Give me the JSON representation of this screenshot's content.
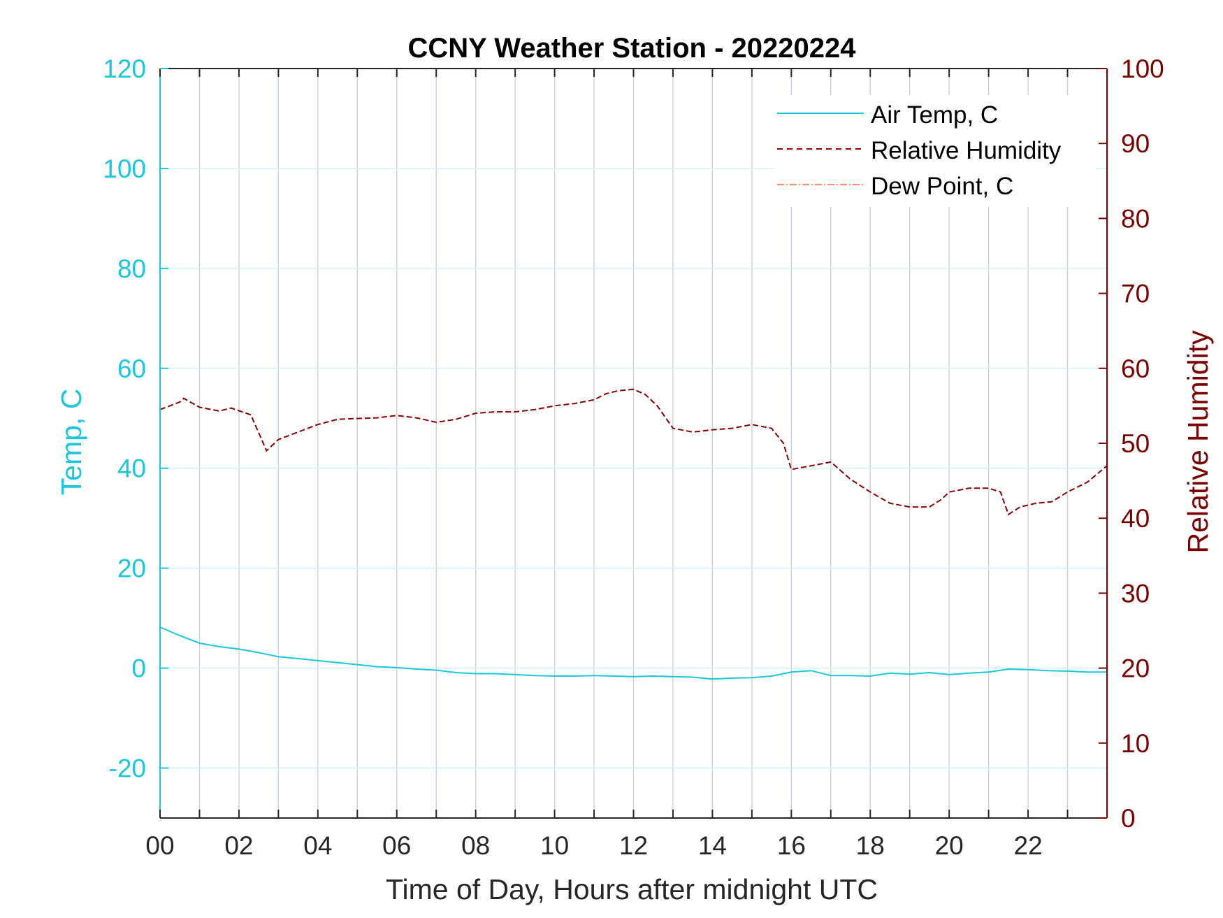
{
  "chart_data": {
    "type": "line",
    "title": "CCNY Weather Station - 20220224",
    "xlabel": "Time of Day, Hours after midnight UTC",
    "ylabel_left": "Temp, C",
    "ylabel_right": "Relative Humidity",
    "xlim": [
      0,
      24
    ],
    "ylim_left": [
      -30,
      120
    ],
    "ylim_right": [
      0,
      100
    ],
    "x_ticks": [
      0,
      2,
      4,
      6,
      8,
      10,
      12,
      14,
      16,
      18,
      20,
      22
    ],
    "x_tick_labels": [
      "00",
      "02",
      "04",
      "06",
      "08",
      "10",
      "12",
      "14",
      "16",
      "18",
      "20",
      "22"
    ],
    "y_ticks_left": [
      -20,
      0,
      20,
      40,
      60,
      80,
      100,
      120
    ],
    "y_ticks_right": [
      0,
      10,
      20,
      30,
      40,
      50,
      60,
      70,
      80,
      90,
      100
    ],
    "grid": true,
    "legend_position": "top-right",
    "colors": {
      "air_temp": "#1cc6dc",
      "relative_humidity": "#8b0000",
      "dew_point": "#ff6347",
      "grid": "#c8d2dc",
      "axis_right": "#7b0000"
    },
    "series": [
      {
        "name": "Air Temp, C",
        "axis": "left",
        "style": "solid",
        "x": [
          0,
          0.5,
          1,
          1.5,
          2,
          2.5,
          3,
          3.5,
          4,
          4.5,
          5,
          5.5,
          6,
          6.5,
          7,
          7.5,
          8,
          8.5,
          9,
          9.5,
          10,
          10.5,
          11,
          11.5,
          12,
          12.5,
          13,
          13.5,
          14,
          14.5,
          15,
          15.5,
          16,
          16.5,
          17,
          17.5,
          18,
          18.5,
          19,
          19.5,
          20,
          20.5,
          21,
          21.5,
          22,
          22.5,
          23,
          23.5,
          24
        ],
        "values": [
          8.2,
          6.5,
          5.0,
          4.3,
          3.8,
          3.1,
          2.3,
          1.9,
          1.5,
          1.1,
          0.7,
          0.3,
          0.1,
          -0.2,
          -0.4,
          -0.9,
          -1.1,
          -1.1,
          -1.3,
          -1.5,
          -1.6,
          -1.6,
          -1.5,
          -1.6,
          -1.7,
          -1.6,
          -1.7,
          -1.8,
          -2.2,
          -2.0,
          -1.9,
          -1.6,
          -0.8,
          -0.5,
          -1.5,
          -1.5,
          -1.6,
          -1.0,
          -1.2,
          -0.9,
          -1.3,
          -1.0,
          -0.8,
          -0.2,
          -0.3,
          -0.5,
          -0.6,
          -0.8,
          -0.8
        ]
      },
      {
        "name": "Relative Humidity",
        "axis": "right",
        "style": "dashed",
        "x": [
          0,
          0.5,
          0.6,
          1,
          1.5,
          1.8,
          2.3,
          2.7,
          3.0,
          3.5,
          4.0,
          4.5,
          5.0,
          5.5,
          6.0,
          6.5,
          7.0,
          7.5,
          8.0,
          8.5,
          9.0,
          9.5,
          10.0,
          10.5,
          11.0,
          11.3,
          11.6,
          12.0,
          12.3,
          12.6,
          13.0,
          13.5,
          14.0,
          14.5,
          15.0,
          15.5,
          15.8,
          16.0,
          16.5,
          17.0,
          17.5,
          18.0,
          18.5,
          19.0,
          19.5,
          19.8,
          20.0,
          20.5,
          21.0,
          21.3,
          21.5,
          21.8,
          22.2,
          22.6,
          23.0,
          23.5,
          24.0
        ],
        "values": [
          54.5,
          55.5,
          56.0,
          54.8,
          54.3,
          54.7,
          53.8,
          49.0,
          50.5,
          51.5,
          52.5,
          53.2,
          53.3,
          53.4,
          53.7,
          53.4,
          52.8,
          53.2,
          54.0,
          54.2,
          54.2,
          54.5,
          55.0,
          55.3,
          55.8,
          56.6,
          57.0,
          57.2,
          56.5,
          55.0,
          52.0,
          51.5,
          51.8,
          52.0,
          52.5,
          52.0,
          50.0,
          46.5,
          47.0,
          47.5,
          45.2,
          43.5,
          42.0,
          41.5,
          41.5,
          42.5,
          43.5,
          44.0,
          44.0,
          43.5,
          40.5,
          41.5,
          42.0,
          42.2,
          43.5,
          44.8,
          47.0
        ]
      },
      {
        "name": "Dew Point, C",
        "axis": "left",
        "style": "dashdot",
        "x": [],
        "values": []
      }
    ]
  }
}
